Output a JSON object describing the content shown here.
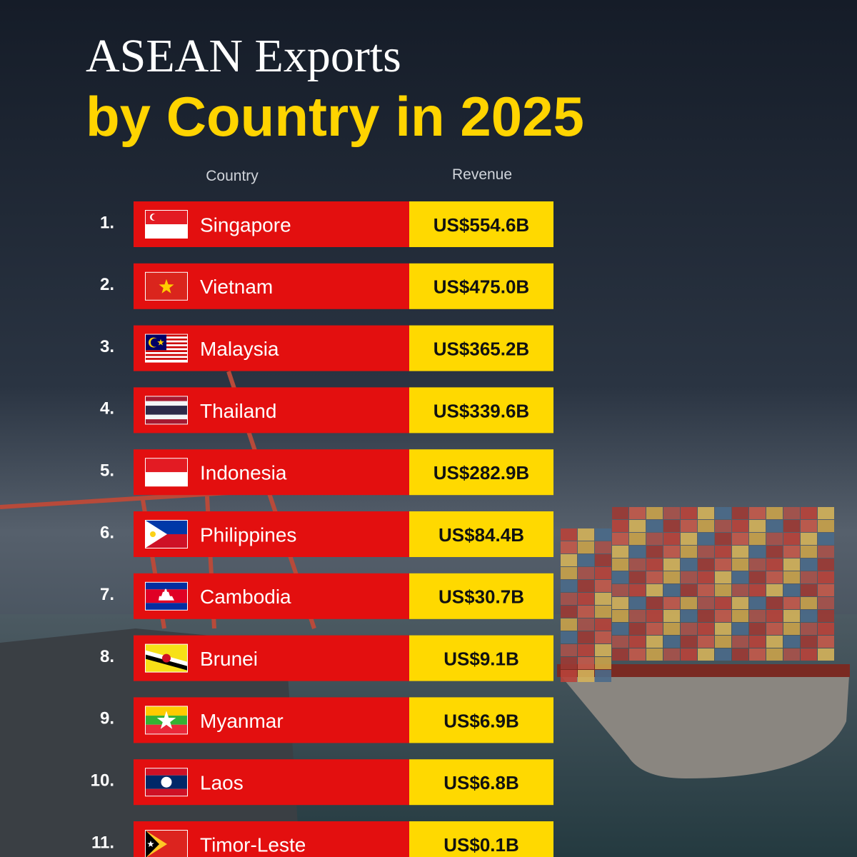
{
  "header": {
    "title": "ASEAN Exports",
    "subtitle": "by Country in 2025"
  },
  "table": {
    "columns": [
      "Country",
      "Revenue"
    ],
    "rows": [
      [
        "1.",
        "Singapore",
        "US$554.6B"
      ],
      [
        "2.",
        "Vietnam",
        "US$475.0B"
      ],
      [
        "3.",
        "Malaysia",
        "US$365.2B"
      ],
      [
        "4.",
        "Thailand",
        "US$339.6B"
      ],
      [
        "5.",
        "Indonesia",
        "US$282.9B"
      ],
      [
        "6.",
        "Philippines",
        "US$84.4B"
      ],
      [
        "7.",
        "Cambodia",
        "US$30.7B"
      ],
      [
        "8.",
        "Brunei",
        "US$9.1B"
      ],
      [
        "9.",
        "Myanmar",
        "US$6.9B"
      ],
      [
        "10.",
        "Laos",
        "US$6.8B"
      ],
      [
        "11.",
        "Timor-Leste",
        "US$0.1B"
      ]
    ]
  }
}
